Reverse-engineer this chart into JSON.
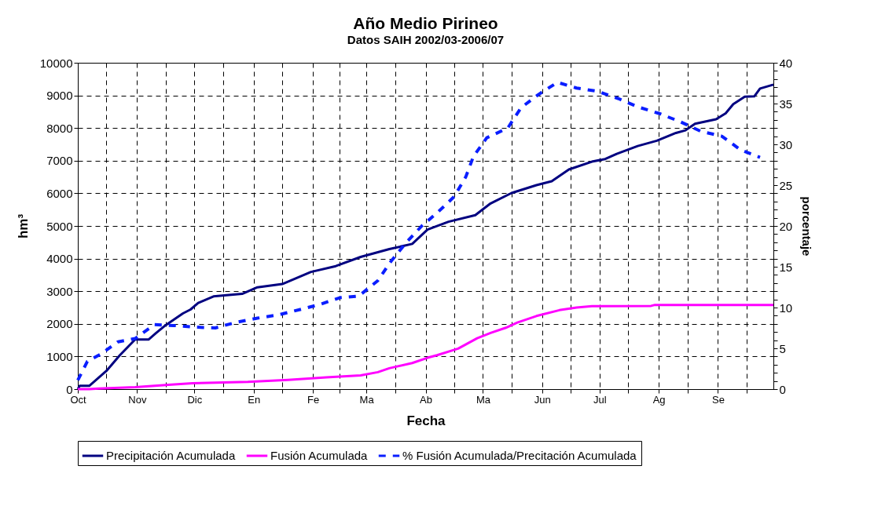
{
  "chart_data": {
    "type": "line",
    "title": "Año Medio Pirineo",
    "subtitle": "Datos SAIH 2002/03-2006/07",
    "xlabel": "Fecha",
    "ylabel": "hm³",
    "y2label": "porcentaje",
    "xlim": [
      "2002-10-01",
      "2003-09-30"
    ],
    "xticks": [
      {
        "value": "2002-10-01",
        "label": "Oct"
      },
      {
        "value": "2002-10-16",
        "label": null
      },
      {
        "value": "2002-11-01",
        "label": "Nov"
      },
      {
        "value": "2002-11-16",
        "label": null
      },
      {
        "value": "2002-12-01",
        "label": "Dic"
      },
      {
        "value": "2002-12-16",
        "label": null
      },
      {
        "value": "2003-01-01",
        "label": "En"
      },
      {
        "value": "2003-01-16",
        "label": null
      },
      {
        "value": "2003-02-01",
        "label": "Fe"
      },
      {
        "value": "2003-02-15",
        "label": null
      },
      {
        "value": "2003-03-01",
        "label": "Ma"
      },
      {
        "value": "2003-03-16",
        "label": null
      },
      {
        "value": "2003-04-01",
        "label": "Ab"
      },
      {
        "value": "2003-04-16",
        "label": null
      },
      {
        "value": "2003-05-01",
        "label": "Ma"
      },
      {
        "value": "2003-05-16",
        "label": null
      },
      {
        "value": "2003-06-01",
        "label": "Jun"
      },
      {
        "value": "2003-06-16",
        "label": null
      },
      {
        "value": "2003-07-01",
        "label": "Jul"
      },
      {
        "value": "2003-07-16",
        "label": null
      },
      {
        "value": "2003-08-01",
        "label": "Ag"
      },
      {
        "value": "2003-08-16",
        "label": null
      },
      {
        "value": "2003-09-01",
        "label": "Se"
      },
      {
        "value": "2003-09-16",
        "label": null
      }
    ],
    "ylim": [
      0,
      10000
    ],
    "yticks": [
      0,
      1000,
      2000,
      3000,
      4000,
      5000,
      6000,
      7000,
      8000,
      9000,
      10000
    ],
    "y2lim": [
      0,
      40
    ],
    "y2ticks": [
      0,
      {
        "value": 1,
        "label": null
      },
      {
        "value": 2,
        "label": null
      },
      {
        "value": 3,
        "label": null
      },
      {
        "value": 4,
        "label": null
      },
      5,
      {
        "value": 6,
        "label": null
      },
      {
        "value": 7,
        "label": null
      },
      {
        "value": 8,
        "label": null
      },
      {
        "value": 9,
        "label": null
      },
      10,
      {
        "value": 11,
        "label": null
      },
      {
        "value": 12,
        "label": null
      },
      {
        "value": 13,
        "label": null
      },
      {
        "value": 14,
        "label": null
      },
      15,
      {
        "value": 16,
        "label": null
      },
      {
        "value": 17,
        "label": null
      },
      {
        "value": 18,
        "label": null
      },
      {
        "value": 19,
        "label": null
      },
      20,
      {
        "value": 21,
        "label": null
      },
      {
        "value": 22,
        "label": null
      },
      {
        "value": 23,
        "label": null
      },
      {
        "value": 24,
        "label": null
      },
      25,
      {
        "value": 26,
        "label": null
      },
      {
        "value": 27,
        "label": null
      },
      {
        "value": 28,
        "label": null
      },
      {
        "value": 29,
        "label": null
      },
      30,
      {
        "value": 31,
        "label": null
      },
      {
        "value": 32,
        "label": null
      },
      {
        "value": 33,
        "label": null
      },
      {
        "value": 34,
        "label": null
      },
      35,
      {
        "value": 36,
        "label": null
      },
      {
        "value": 37,
        "label": null
      },
      {
        "value": 38,
        "label": null
      },
      {
        "value": 39,
        "label": null
      },
      40
    ],
    "grid": true,
    "legend": "bottom",
    "marker": "none",
    "series": [
      {
        "name": "Precipitación Acumulada",
        "color": "#000080",
        "line_style": "solid",
        "axis": "y",
        "x": [
          "2002-10-01",
          "2002-10-02",
          "2002-10-07",
          "2002-10-09",
          "2002-10-16",
          "2002-10-23",
          "2002-10-31",
          "2002-11-07",
          "2002-11-11",
          "2002-11-16",
          "2002-11-25",
          "2002-11-29",
          "2002-12-03",
          "2002-12-11",
          "2002-12-26",
          "2003-01-03",
          "2003-01-16",
          "2003-01-31",
          "2003-02-13",
          "2003-02-26",
          "2003-03-13",
          "2003-03-25",
          "2003-04-02",
          "2003-04-13",
          "2003-04-27",
          "2003-05-05",
          "2003-05-16",
          "2003-05-29",
          "2003-06-06",
          "2003-06-15",
          "2003-06-27",
          "2003-07-04",
          "2003-07-10",
          "2003-07-21",
          "2003-07-31",
          "2003-08-10",
          "2003-08-15",
          "2003-08-20",
          "2003-08-31",
          "2003-09-05",
          "2003-09-09",
          "2003-09-15",
          "2003-09-20",
          "2003-09-23",
          "2003-09-30"
        ],
        "values": [
          0,
          100,
          100,
          200,
          560,
          1040,
          1520,
          1520,
          1720,
          1960,
          2320,
          2440,
          2640,
          2840,
          2920,
          3120,
          3220,
          3590,
          3770,
          4050,
          4290,
          4450,
          4890,
          5130,
          5330,
          5690,
          6010,
          6250,
          6370,
          6730,
          6970,
          7050,
          7210,
          7450,
          7610,
          7850,
          7930,
          8130,
          8270,
          8450,
          8730,
          8960,
          8970,
          9210,
          9330
        ]
      },
      {
        "name": "Fusión Acumulada",
        "color": "#ff00ff",
        "line_style": "solid",
        "axis": "y",
        "x": [
          "2002-10-01",
          "2002-10-07",
          "2002-10-12",
          "2002-10-31",
          "2002-11-19",
          "2002-11-30",
          "2002-12-29",
          "2003-01-19",
          "2003-02-08",
          "2003-02-26",
          "2003-03-07",
          "2003-03-13",
          "2003-03-25",
          "2003-04-02",
          "2003-04-07",
          "2003-04-18",
          "2003-04-28",
          "2003-05-05",
          "2003-05-13",
          "2003-05-19",
          "2003-05-29",
          "2003-06-10",
          "2003-06-19",
          "2003-06-27",
          "2003-07-28",
          "2003-07-30",
          "2003-09-30"
        ],
        "values": [
          0,
          0,
          20,
          60,
          140,
          180,
          220,
          280,
          360,
          420,
          520,
          640,
          800,
          960,
          1040,
          1240,
          1560,
          1720,
          1880,
          2040,
          2240,
          2420,
          2500,
          2540,
          2550,
          2580,
          2580
        ]
      },
      {
        "name": "% Fusión Acumulada/Precitación Acumulada",
        "color": "#0a1eff",
        "line_style": "dashed",
        "axis": "y2",
        "x": [
          "2002-10-01",
          "2002-10-06",
          "2002-10-13",
          "2002-10-22",
          "2002-10-31",
          "2002-11-10",
          "2002-11-20",
          "2002-12-01",
          "2002-12-12",
          "2002-12-23",
          "2003-01-03",
          "2003-01-14",
          "2003-01-26",
          "2003-02-05",
          "2003-02-15",
          "2003-02-25",
          "2003-03-07",
          "2003-03-14",
          "2003-03-22",
          "2003-03-30",
          "2003-04-07",
          "2003-04-16",
          "2003-04-22",
          "2003-04-26",
          "2003-05-03",
          "2003-05-14",
          "2003-05-21",
          "2003-05-30",
          "2003-06-09",
          "2003-06-19",
          "2003-06-30",
          "2003-07-11",
          "2003-07-21",
          "2003-08-01",
          "2003-08-12",
          "2003-08-23",
          "2003-09-03",
          "2003-09-13",
          "2003-09-23"
        ],
        "values": [
          1.1,
          3.4,
          4.3,
          5.8,
          6.2,
          7.9,
          7.8,
          7.6,
          7.5,
          8.2,
          8.7,
          9.1,
          9.8,
          10.4,
          11.2,
          11.4,
          13.3,
          15.7,
          18.0,
          20.0,
          21.6,
          23.6,
          26.0,
          28.5,
          30.8,
          32.0,
          34.5,
          36.1,
          37.6,
          36.9,
          36.5,
          35.6,
          34.6,
          33.8,
          32.8,
          31.6,
          31.0,
          29.3,
          28.4
        ]
      }
    ]
  }
}
